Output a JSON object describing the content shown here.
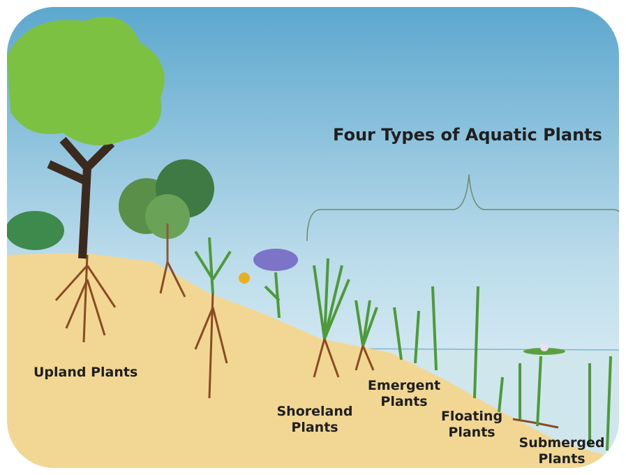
{
  "title": "Four Types of Aquatic Plants",
  "labels": [
    "Upland Plants",
    "Shoreland Plants",
    "Emergent Plants",
    "Floating Plants",
    "Submerged Plants"
  ]
}
